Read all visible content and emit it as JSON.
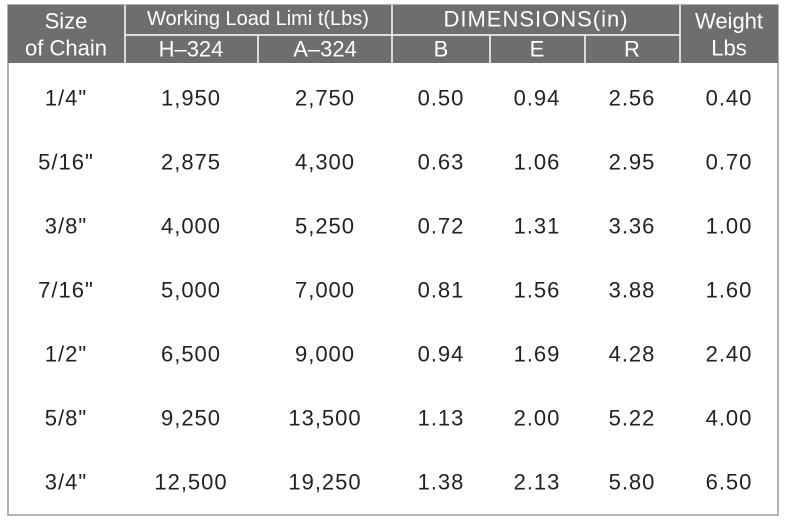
{
  "table": {
    "header": {
      "size_of_chain": [
        "Size",
        "of Chain"
      ],
      "working_load_limit": "Working Load Limi t(Lbs)",
      "dimensions": "DIMENSIONS(in)",
      "weight": [
        "Weight",
        "Lbs"
      ],
      "subheaders": [
        "H–324",
        "A–324",
        "B",
        "E",
        "R"
      ]
    },
    "rows": [
      [
        "1/4\"",
        "1,950",
        "2,750",
        "0.50",
        "0.94",
        "2.56",
        "0.40"
      ],
      [
        "5/16\"",
        "2,875",
        "4,300",
        "0.63",
        "1.06",
        "2.95",
        "0.70"
      ],
      [
        "3/8\"",
        "4,000",
        "5,250",
        "0.72",
        "1.31",
        "3.36",
        "1.00"
      ],
      [
        "7/16\"",
        "5,000",
        "7,000",
        "0.81",
        "1.56",
        "3.88",
        "1.60"
      ],
      [
        "1/2\"",
        "6,500",
        "9,000",
        "0.94",
        "1.69",
        "4.28",
        "2.40"
      ],
      [
        "5/8\"",
        "9,250",
        "13,500",
        "1.13",
        "2.00",
        "5.22",
        "4.00"
      ],
      [
        "3/4\"",
        "12,500",
        "19,250",
        "1.38",
        "2.13",
        "5.80",
        "6.50"
      ]
    ]
  }
}
